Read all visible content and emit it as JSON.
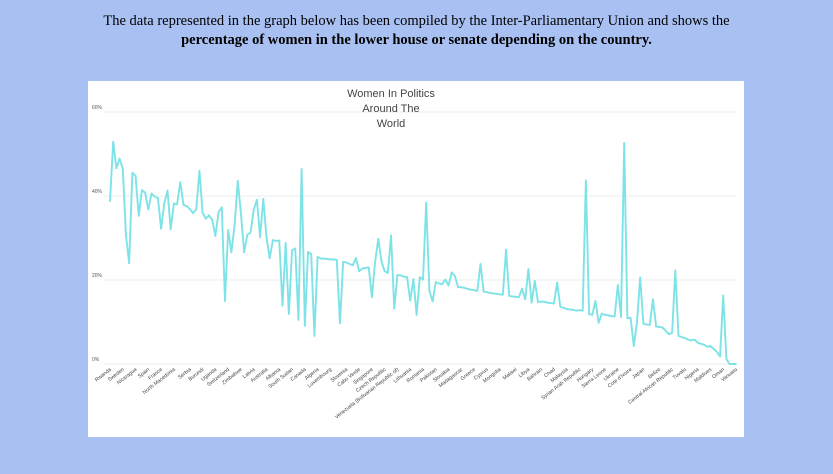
{
  "intro": {
    "line1": "The data represented in the graph below has been compiled by the Inter-Parliamentary Union and shows the",
    "line2": "percentage of women in the lower house or senate depending on the country."
  },
  "colors": {
    "line": "#7ee3e6",
    "background": "#a9c1f2",
    "grid": "#e9e9e9"
  },
  "chart_data": {
    "type": "line",
    "title_lines": [
      "Women In Politics",
      "Around The",
      "World"
    ],
    "ylim": [
      0,
      60
    ],
    "yticks": [
      0,
      20,
      40,
      60
    ],
    "ytick_labels": [
      "0%",
      "20%",
      "40%",
      "60%"
    ],
    "grid": true,
    "labeled_categories": [
      "Rwanda",
      "Sweden",
      "Nicaragua",
      "Spain",
      "France",
      "North Macedonia",
      "Serbia",
      "Burundi",
      "Uganda",
      "Switzerland",
      "Zimbabwe",
      "Latvia",
      "Australia",
      "Albania",
      "South Sudan",
      "Canada",
      "Algeria",
      "Luxembourg",
      "Slovenia",
      "Cabo Verde",
      "Singapore",
      "Czech Republic",
      "Venezuela (Bolivarian Republic of)",
      "Lithuania",
      "Romania",
      "Pakistan",
      "Slovakia",
      "Madagascar",
      "Greece",
      "Cyprus",
      "Mongolia",
      "Malawi",
      "Libya",
      "Bahrain",
      "Chad",
      "Malaysia",
      "Syrian Arab Republic",
      "Hungary",
      "Sierra Leone",
      "Ukraine",
      "Cote d'Ivoire",
      "Japan",
      "Belize",
      "Central African Republic",
      "Tuvalu",
      "Nigeria",
      "Maldives",
      "Oman",
      "Vanuatu"
    ],
    "values": [
      38.8,
      52.9,
      46.6,
      48.9,
      46.5,
      30.6,
      24,
      45.5,
      44.8,
      35.3,
      41.4,
      40.8,
      36.8,
      40.6,
      39.9,
      39.5,
      32.2,
      38.3,
      41.3,
      32.1,
      38.2,
      38,
      43.3,
      37.9,
      37.6,
      36.9,
      35.9,
      36.8,
      46,
      36,
      34.6,
      35.4,
      34.3,
      30.5,
      36.2,
      37.3,
      15,
      31.9,
      26.6,
      32.9,
      43.6,
      35.8,
      26.6,
      30.8,
      31.3,
      36.7,
      39.1,
      30.2,
      39.3,
      30.1,
      25.2,
      29.5,
      29.3,
      29.4,
      13.9,
      28.8,
      11.9,
      27.1,
      27.5,
      10.5,
      46.4,
      9.1,
      26.7,
      26.2,
      6.7,
      25.5,
      25.1,
      25.1,
      25,
      24.9,
      24.9,
      24.8,
      9.7,
      24.3,
      24.2,
      23.8,
      23.5,
      25.2,
      22.1,
      22.7,
      22.9,
      23,
      15.9,
      24.3,
      29.8,
      24.4,
      22.1,
      21.7,
      30.6,
      13.2,
      21.2,
      21.1,
      20.8,
      20.7,
      15.1,
      20.2,
      11.7,
      20.7,
      20.1,
      38.4,
      17.4,
      14.9,
      19.5,
      19.2,
      19,
      20.1,
      18.7,
      21.8,
      20.9,
      18.3,
      18.3,
      18.1,
      17.9,
      17.7,
      17.6,
      17.4,
      23.8,
      17.3,
      17.1,
      16.9,
      16.8,
      16.7,
      16.6,
      16.5,
      27.2,
      16.2,
      16.1,
      16,
      15.9,
      17.9,
      15.4,
      22.6,
      14.6,
      19.8,
      14.7,
      14.9,
      14.8,
      14.6,
      14.5,
      14.4,
      19.4,
      13.6,
      13.4,
      13.1,
      13,
      12.9,
      12.7,
      12.8,
      12.7,
      43.7,
      11.9,
      11.7,
      15,
      9.8,
      12,
      11.7,
      11.6,
      11.4,
      11.3,
      18.8,
      11.2,
      52.6,
      10.9,
      11,
      4.3,
      9.9,
      20.6,
      9.6,
      9.4,
      9.3,
      15.4,
      8.9,
      8.8,
      8.7,
      7.9,
      7.1,
      7.4,
      22.3,
      6.7,
      6.4,
      6.2,
      5.8,
      5.6,
      5.8,
      5.1,
      4.8,
      4.6,
      4.1,
      4.3,
      3.6,
      2.9,
      1.8,
      16.3,
      1.2,
      0,
      0,
      0
    ]
  }
}
